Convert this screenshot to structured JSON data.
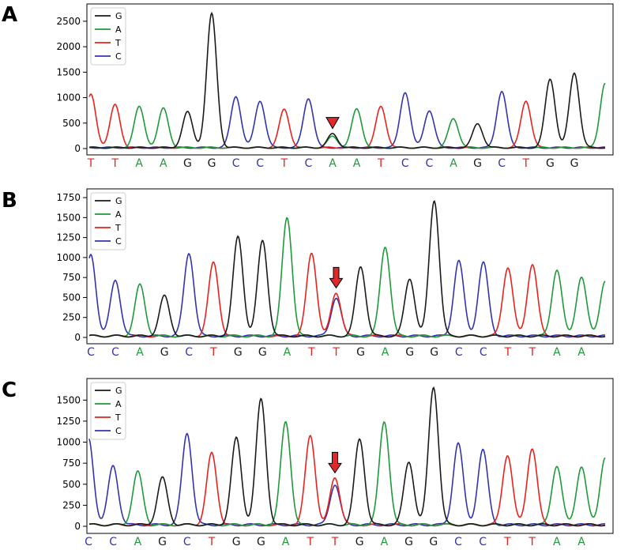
{
  "colors": {
    "G": "#1a1a1a",
    "A": "#1e9a3a",
    "T": "#e8231f",
    "C": "#3333b0",
    "arrow": "#e0282a"
  },
  "legend": [
    {
      "base": "G",
      "label": "G"
    },
    {
      "base": "A",
      "label": "A"
    },
    {
      "base": "T",
      "label": "T"
    },
    {
      "base": "C",
      "label": "C"
    }
  ],
  "chart_data": [
    {
      "type": "line",
      "panel_label": "A",
      "ylim": [
        0,
        2700
      ],
      "yticks": [
        0,
        500,
        1000,
        1500,
        2000,
        2500
      ],
      "grid": false,
      "legend_position": "top-left",
      "sequence": [
        "T",
        "T",
        "A",
        "A",
        "G",
        "G",
        "C",
        "C",
        "T",
        "C",
        "A",
        "A",
        "T",
        "C",
        "C",
        "A",
        "G",
        "C",
        "T",
        "G",
        "G"
      ],
      "peaks": [
        1040,
        840,
        800,
        770,
        700,
        2630,
        1010,
        920,
        750,
        970,
        220,
        760,
        810,
        1090,
        730,
        570,
        470,
        1110,
        920,
        1350,
        1470
      ],
      "secondary_peaks": [
        {
          "index": 10,
          "base": "G",
          "height": 270
        }
      ],
      "end_peak": {
        "base": "A",
        "height": 1270
      },
      "arrow_index": 10
    },
    {
      "type": "line",
      "panel_label": "B",
      "ylim": [
        0,
        1800
      ],
      "yticks": [
        0,
        250,
        500,
        750,
        1000,
        1250,
        1500,
        1750
      ],
      "grid": false,
      "legend_position": "top-left",
      "sequence": [
        "C",
        "C",
        "A",
        "G",
        "C",
        "T",
        "G",
        "G",
        "A",
        "T",
        "T",
        "G",
        "A",
        "G",
        "G",
        "C",
        "C",
        "T",
        "T",
        "A",
        "A"
      ],
      "peaks": [
        1020,
        700,
        640,
        500,
        1040,
        920,
        1240,
        1190,
        1480,
        1040,
        540,
        870,
        1120,
        720,
        1700,
        940,
        920,
        860,
        900,
        830,
        740
      ],
      "secondary_peaks": [
        {
          "index": 10,
          "base": "C",
          "height": 480
        }
      ],
      "end_peak": {
        "base": "A",
        "height": 690
      },
      "arrow_index": 10
    },
    {
      "type": "line",
      "panel_label": "C",
      "ylim": [
        0,
        1700
      ],
      "yticks": [
        0,
        250,
        500,
        750,
        1000,
        1250,
        1500
      ],
      "grid": false,
      "legend_position": "top-left",
      "sequence": [
        "C",
        "C",
        "A",
        "G",
        "C",
        "T",
        "G",
        "G",
        "A",
        "T",
        "T",
        "G",
        "A",
        "G",
        "G",
        "C",
        "C",
        "T",
        "T",
        "A",
        "A"
      ],
      "peaks": [
        1030,
        700,
        630,
        560,
        1090,
        850,
        1030,
        1490,
        1220,
        1060,
        560,
        1020,
        1230,
        750,
        1640,
        970,
        890,
        830,
        910,
        700,
        690
      ],
      "secondary_peaks": [
        {
          "index": 10,
          "base": "C",
          "height": 480
        }
      ],
      "end_peak": {
        "base": "A",
        "height": 800
      },
      "arrow_index": 10
    }
  ]
}
